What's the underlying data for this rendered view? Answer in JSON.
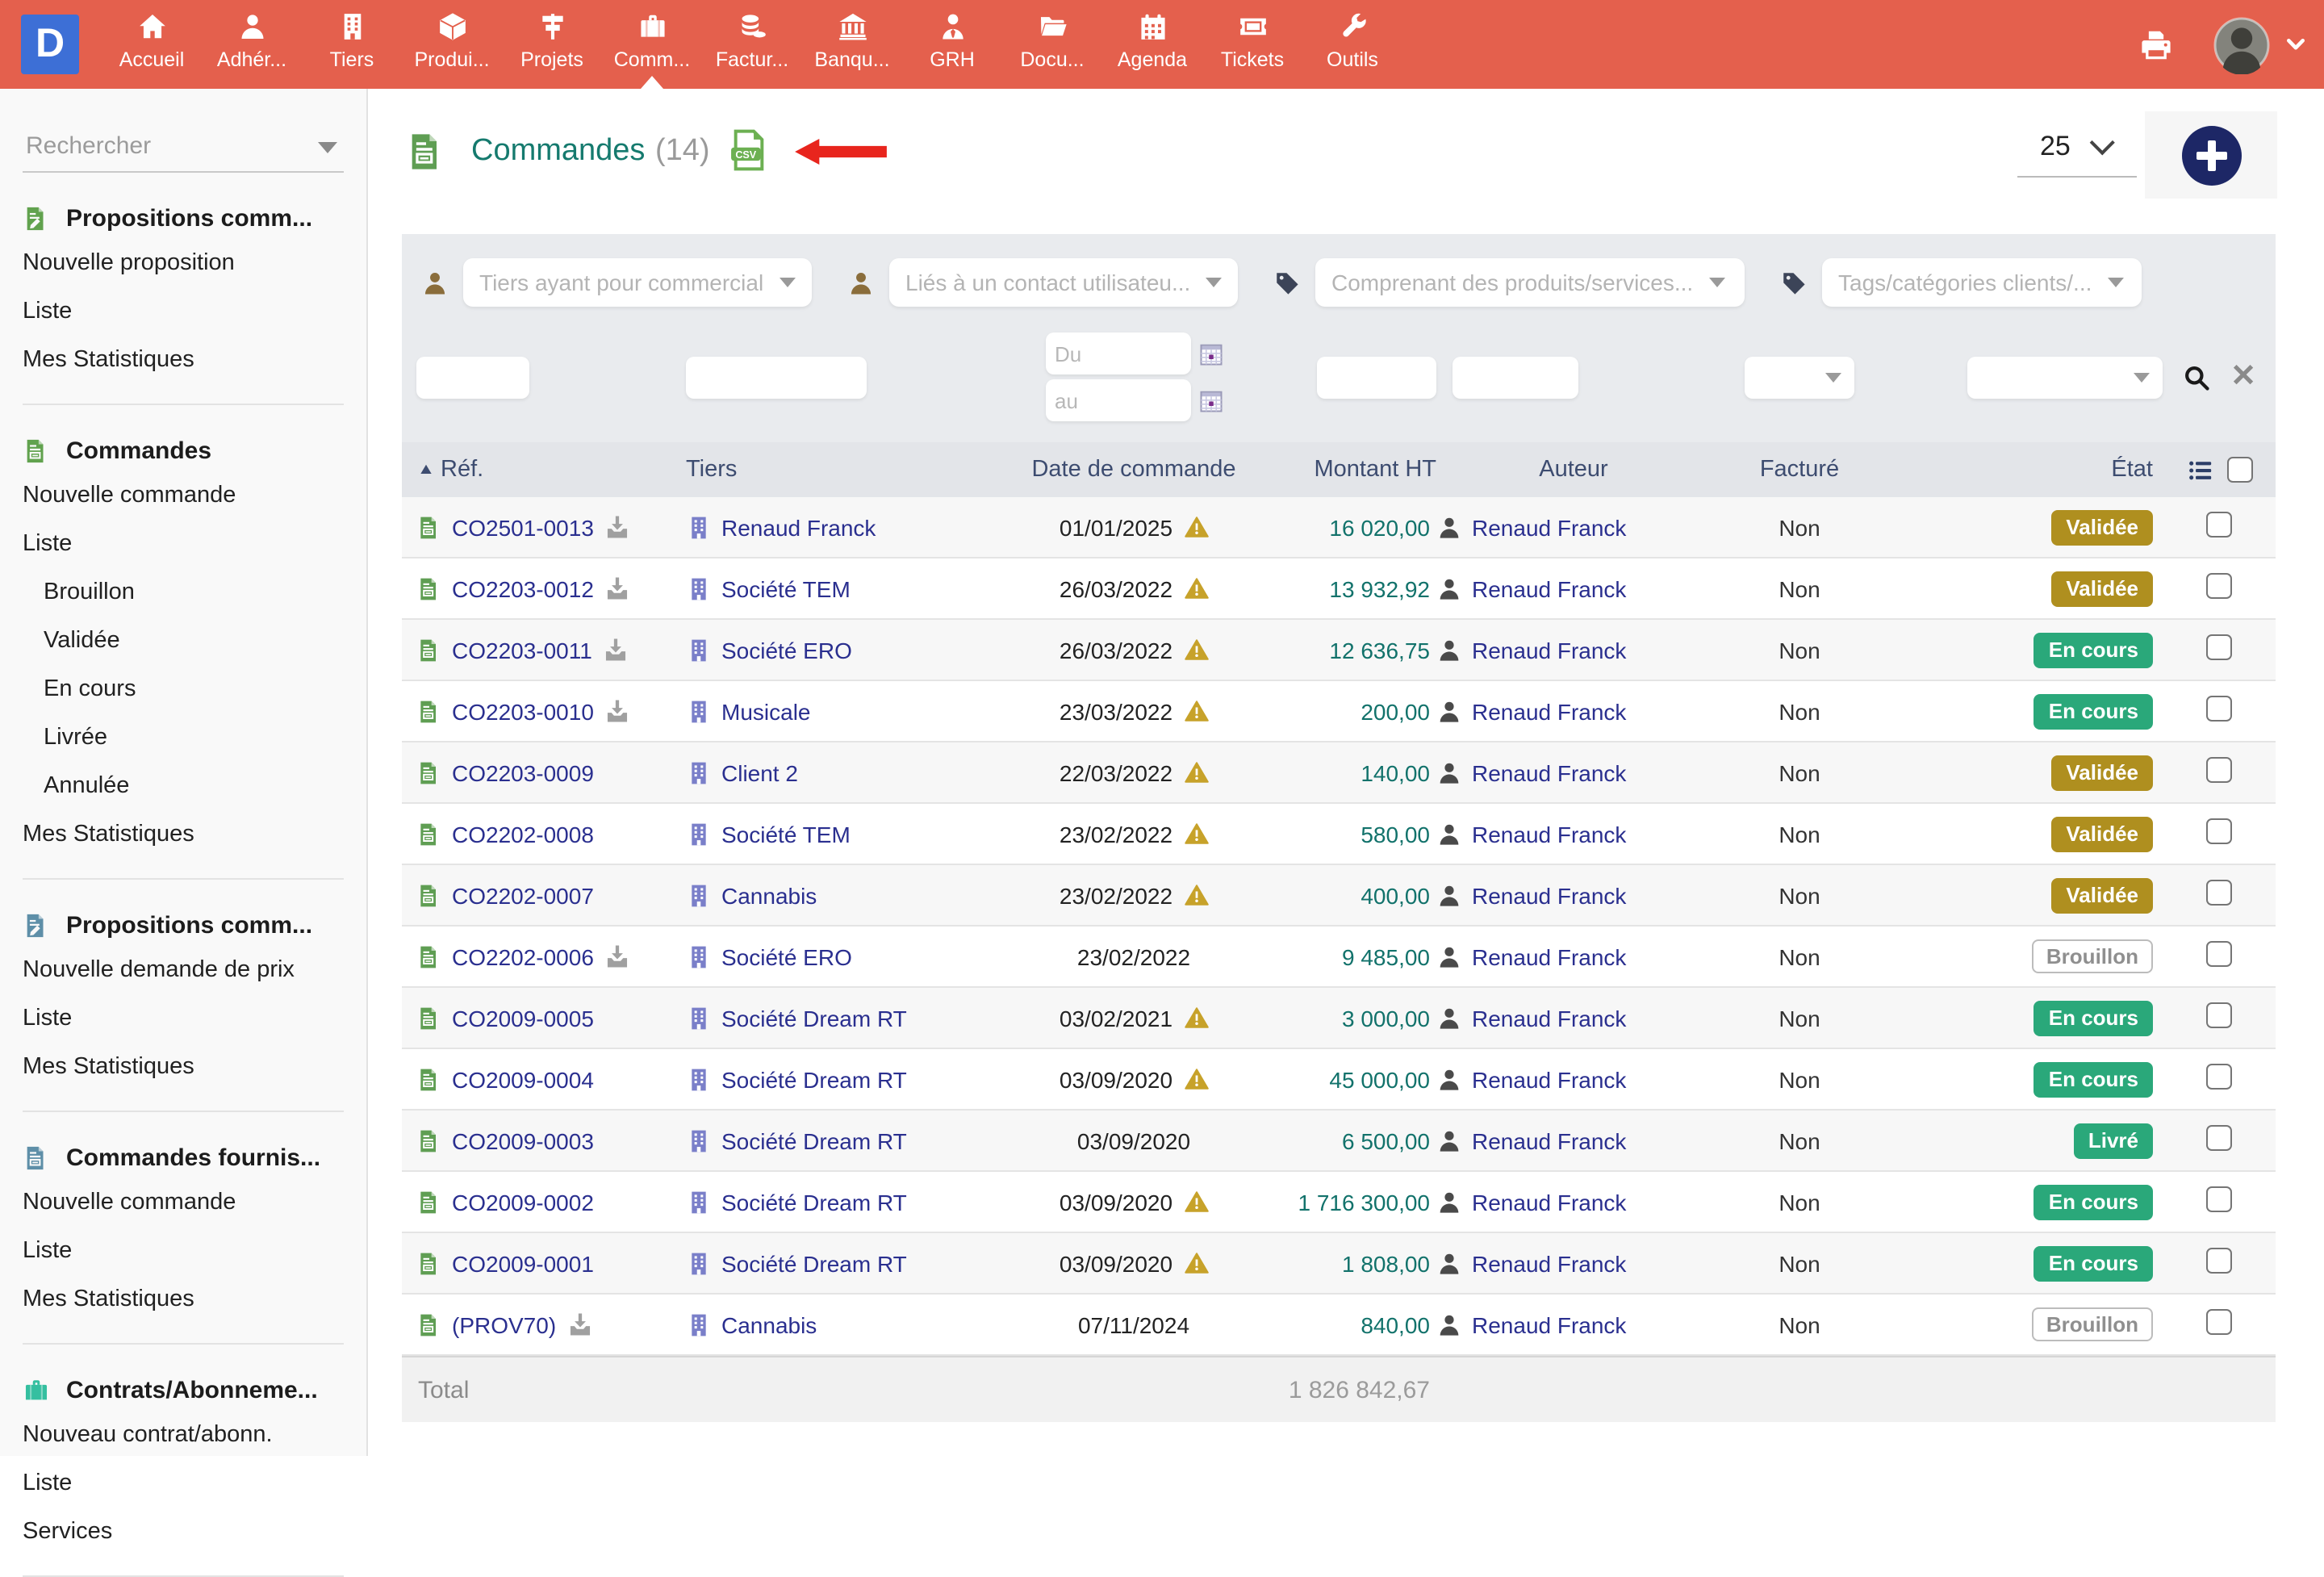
{
  "topbar": {
    "logo": "D",
    "items": [
      {
        "label": "Accueil",
        "icon": "home-icon"
      },
      {
        "label": "Adhér...",
        "icon": "member-icon"
      },
      {
        "label": "Tiers",
        "icon": "thirdparty-icon"
      },
      {
        "label": "Produi...",
        "icon": "product-icon"
      },
      {
        "label": "Projets",
        "icon": "project-icon"
      },
      {
        "label": "Comm...",
        "icon": "commerce-icon",
        "active": true
      },
      {
        "label": "Factur...",
        "icon": "billing-icon"
      },
      {
        "label": "Banqu...",
        "icon": "bank-icon"
      },
      {
        "label": "GRH",
        "icon": "hrm-icon"
      },
      {
        "label": "Docu...",
        "icon": "documents-icon"
      },
      {
        "label": "Agenda",
        "icon": "agenda-icon"
      },
      {
        "label": "Tickets",
        "icon": "ticket-icon"
      },
      {
        "label": "Outils",
        "icon": "tools-icon"
      }
    ]
  },
  "sidebar": {
    "search_placeholder": "Rechercher",
    "sections": [
      {
        "title": "Propositions comm...",
        "icon": "proposal-icon",
        "color": "green",
        "items": [
          {
            "label": "Nouvelle proposition"
          },
          {
            "label": "Liste"
          },
          {
            "label": "Mes Statistiques"
          }
        ]
      },
      {
        "title": "Commandes",
        "icon": "order-icon",
        "color": "green",
        "items": [
          {
            "label": "Nouvelle commande"
          },
          {
            "label": "Liste"
          },
          {
            "label": "Brouillon",
            "indent": true
          },
          {
            "label": "Validée",
            "indent": true
          },
          {
            "label": "En cours",
            "indent": true
          },
          {
            "label": "Livrée",
            "indent": true
          },
          {
            "label": "Annulée",
            "indent": true
          },
          {
            "label": "Mes Statistiques"
          }
        ]
      },
      {
        "title": "Propositions comm...",
        "icon": "supplier-proposal-icon",
        "color": "blue",
        "items": [
          {
            "label": "Nouvelle demande de prix"
          },
          {
            "label": "Liste"
          },
          {
            "label": "Mes Statistiques"
          }
        ]
      },
      {
        "title": "Commandes fournis...",
        "icon": "supplier-order-icon",
        "color": "blue",
        "items": [
          {
            "label": "Nouvelle commande"
          },
          {
            "label": "Liste"
          },
          {
            "label": "Mes Statistiques"
          }
        ]
      },
      {
        "title": "Contrats/Abonneme...",
        "icon": "contract-icon",
        "color": "teal",
        "items": [
          {
            "label": "Nouveau contrat/abonn."
          },
          {
            "label": "Liste"
          },
          {
            "label": "Services"
          }
        ]
      }
    ]
  },
  "main": {
    "title": "Commandes",
    "count": "(14)",
    "csv_icon": "csv-export-icon",
    "page_size": "25",
    "filters": {
      "dropdowns": [
        {
          "placeholder": "Tiers ayant pour commercial",
          "icon": "user-filter-icon",
          "kind": "user"
        },
        {
          "placeholder": "Liés à un contact utilisateu...",
          "icon": "user-filter-icon",
          "kind": "user"
        },
        {
          "placeholder": "Comprenant des produits/services...",
          "icon": "tag-filter-icon",
          "kind": "tag"
        },
        {
          "placeholder": "Tags/catégories clients/...",
          "icon": "tag-filter-icon",
          "kind": "tag"
        }
      ],
      "date_from": "Du",
      "date_to": "au"
    },
    "table": {
      "columns": [
        "Réf.",
        "Tiers",
        "Date de commande",
        "Montant HT",
        "Auteur",
        "Facturé",
        "État"
      ],
      "rows": [
        {
          "ref": "CO2501-0013",
          "download": true,
          "tiers": "Renaud Franck",
          "date": "01/01/2025",
          "warning": true,
          "amount": "16 020,00",
          "author": "Renaud Franck",
          "invoiced": "Non",
          "status": "Validée",
          "status_type": "validated"
        },
        {
          "ref": "CO2203-0012",
          "download": true,
          "tiers": "Société TEM",
          "date": "26/03/2022",
          "warning": true,
          "amount": "13 932,92",
          "author": "Renaud Franck",
          "invoiced": "Non",
          "status": "Validée",
          "status_type": "validated"
        },
        {
          "ref": "CO2203-0011",
          "download": true,
          "tiers": "Société ERO",
          "date": "26/03/2022",
          "warning": true,
          "amount": "12 636,75",
          "author": "Renaud Franck",
          "invoiced": "Non",
          "status": "En cours",
          "status_type": "inprogress"
        },
        {
          "ref": "CO2203-0010",
          "download": true,
          "tiers": "Musicale",
          "date": "23/03/2022",
          "warning": true,
          "amount": "200,00",
          "author": "Renaud Franck",
          "invoiced": "Non",
          "status": "En cours",
          "status_type": "inprogress"
        },
        {
          "ref": "CO2203-0009",
          "download": false,
          "tiers": "Client 2",
          "date": "22/03/2022",
          "warning": true,
          "amount": "140,00",
          "author": "Renaud Franck",
          "invoiced": "Non",
          "status": "Validée",
          "status_type": "validated"
        },
        {
          "ref": "CO2202-0008",
          "download": false,
          "tiers": "Société TEM",
          "date": "23/02/2022",
          "warning": true,
          "amount": "580,00",
          "author": "Renaud Franck",
          "invoiced": "Non",
          "status": "Validée",
          "status_type": "validated"
        },
        {
          "ref": "CO2202-0007",
          "download": false,
          "tiers": "Cannabis",
          "date": "23/02/2022",
          "warning": true,
          "amount": "400,00",
          "author": "Renaud Franck",
          "invoiced": "Non",
          "status": "Validée",
          "status_type": "validated"
        },
        {
          "ref": "CO2202-0006",
          "download": true,
          "tiers": "Société ERO",
          "date": "23/02/2022",
          "warning": false,
          "amount": "9 485,00",
          "author": "Renaud Franck",
          "invoiced": "Non",
          "status": "Brouillon",
          "status_type": "draft"
        },
        {
          "ref": "CO2009-0005",
          "download": false,
          "tiers": "Société Dream RT",
          "date": "03/02/2021",
          "warning": true,
          "amount": "3 000,00",
          "author": "Renaud Franck",
          "invoiced": "Non",
          "status": "En cours",
          "status_type": "inprogress"
        },
        {
          "ref": "CO2009-0004",
          "download": false,
          "tiers": "Société Dream RT",
          "date": "03/09/2020",
          "warning": true,
          "amount": "45 000,00",
          "author": "Renaud Franck",
          "invoiced": "Non",
          "status": "En cours",
          "status_type": "inprogress"
        },
        {
          "ref": "CO2009-0003",
          "download": false,
          "tiers": "Société Dream RT",
          "date": "03/09/2020",
          "warning": false,
          "amount": "6 500,00",
          "author": "Renaud Franck",
          "invoiced": "Non",
          "status": "Livré",
          "status_type": "delivered"
        },
        {
          "ref": "CO2009-0002",
          "download": false,
          "tiers": "Société Dream RT",
          "date": "03/09/2020",
          "warning": true,
          "amount": "1 716 300,00",
          "author": "Renaud Franck",
          "invoiced": "Non",
          "status": "En cours",
          "status_type": "inprogress"
        },
        {
          "ref": "CO2009-0001",
          "download": false,
          "tiers": "Société Dream RT",
          "date": "03/09/2020",
          "warning": true,
          "amount": "1 808,00",
          "author": "Renaud Franck",
          "invoiced": "Non",
          "status": "En cours",
          "status_type": "inprogress"
        },
        {
          "ref": "(PROV70)",
          "download": true,
          "tiers": "Cannabis",
          "date": "07/11/2024",
          "warning": false,
          "amount": "840,00",
          "author": "Renaud Franck",
          "invoiced": "Non",
          "status": "Brouillon",
          "status_type": "draft"
        }
      ],
      "total_label": "Total",
      "total_value": "1 826 842,67"
    }
  },
  "colors": {
    "topbar": "#e4604d",
    "logo_blue": "#3d6fd6",
    "accent_teal": "#157a6e",
    "link_navy": "#2a2f8f",
    "amount_teal": "#12726b",
    "badge_validated": "#af8f1f",
    "badge_inprogress": "#2aa87a",
    "sidebar_green": "#61a24e",
    "sidebar_blue": "#5e8fa8",
    "sidebar_teal": "#35bfa0",
    "warning_gold": "#c7a22a",
    "annotation_red": "#e8251d"
  }
}
